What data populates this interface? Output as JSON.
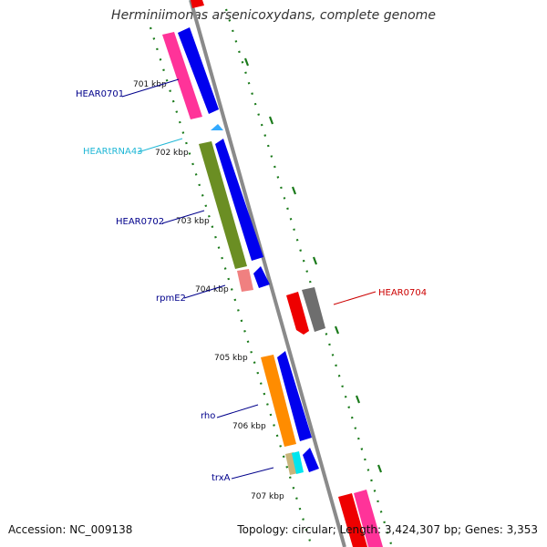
{
  "title": "Herminiimonas arsenicoxydans, complete genome",
  "footer": {
    "accession": "Accession: NC_009138",
    "summary": "Topology: circular; Length: 3,424,307 bp; Genes: 3,353"
  },
  "kbp_ticks": [
    "701 kbp",
    "702 kbp",
    "703 kbp",
    "704 kbp",
    "705 kbp",
    "706 kbp",
    "707 kbp"
  ],
  "gene_labels": [
    {
      "text": "HEAR0701",
      "color": "#00008b"
    },
    {
      "text": "HEARtRNA43",
      "color": "#1fb7d6"
    },
    {
      "text": "HEAR0702",
      "color": "#00008b"
    },
    {
      "text": "rpmE2",
      "color": "#00008b"
    },
    {
      "text": "HEAR0704",
      "color": "#cc0000"
    },
    {
      "text": "rho",
      "color": "#00008b"
    },
    {
      "text": "trxA",
      "color": "#00008b"
    }
  ],
  "colors": {
    "backbone": "#8a8a8a",
    "tick": "#1a7a1a",
    "forward_strand": "#0000ee",
    "reverse_strand": "#ee0000",
    "magenta": "#ff3399",
    "olive": "#6b8e23",
    "pink": "#f08080",
    "orange": "#ff8c00",
    "cyan": "#00e5ee",
    "tan": "#c8b47a",
    "grey": "#6e6e6e",
    "trna": "#33aaff"
  }
}
